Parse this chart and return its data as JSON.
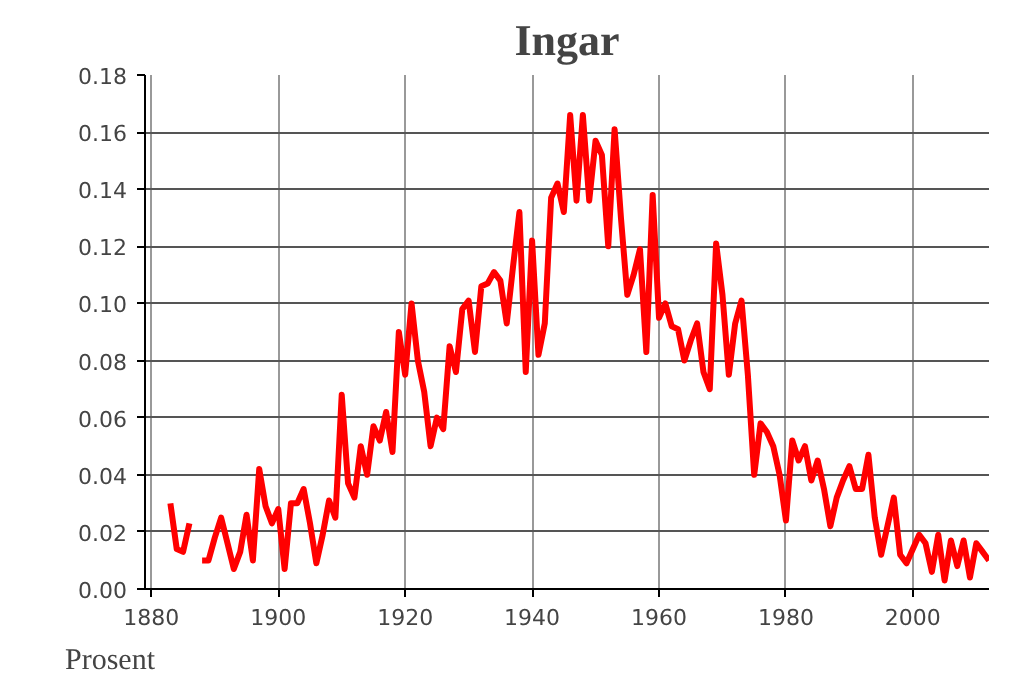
{
  "chart_data": {
    "type": "line",
    "title": "Ingar",
    "annotations": [
      "Prosent"
    ],
    "x": [
      1883,
      1884,
      1885,
      1886,
      1887,
      1888,
      1889,
      1890,
      1891,
      1892,
      1893,
      1894,
      1895,
      1896,
      1897,
      1898,
      1899,
      1900,
      1901,
      1902,
      1903,
      1904,
      1905,
      1906,
      1907,
      1908,
      1909,
      1910,
      1911,
      1912,
      1913,
      1914,
      1915,
      1916,
      1917,
      1918,
      1919,
      1920,
      1921,
      1922,
      1923,
      1924,
      1925,
      1926,
      1927,
      1928,
      1929,
      1930,
      1931,
      1932,
      1933,
      1934,
      1935,
      1936,
      1937,
      1938,
      1939,
      1940,
      1941,
      1942,
      1943,
      1944,
      1945,
      1946,
      1947,
      1948,
      1949,
      1950,
      1951,
      1952,
      1953,
      1954,
      1955,
      1956,
      1957,
      1958,
      1959,
      1960,
      1961,
      1962,
      1963,
      1964,
      1965,
      1966,
      1967,
      1968,
      1969,
      1970,
      1971,
      1972,
      1973,
      1974,
      1975,
      1976,
      1977,
      1978,
      1979,
      1980,
      1981,
      1982,
      1983,
      1984,
      1985,
      1986,
      1987,
      1988,
      1989,
      1990,
      1991,
      1992,
      1993,
      1994,
      1995,
      1996,
      1997,
      1998,
      1999,
      2000,
      2001,
      2002,
      2003,
      2004,
      2005,
      2006,
      2007,
      2008,
      2009,
      2010,
      2011,
      2012
    ],
    "series": [
      {
        "color": "#ff0000",
        "values": [
          0.03,
          0.014,
          0.013,
          0.023,
          null,
          0.01,
          0.01,
          0.018,
          0.025,
          0.016,
          0.007,
          0.013,
          0.026,
          0.01,
          0.042,
          0.029,
          0.023,
          0.028,
          0.007,
          0.03,
          0.03,
          0.035,
          0.023,
          0.009,
          0.019,
          0.031,
          0.025,
          0.068,
          0.037,
          0.032,
          0.05,
          0.04,
          0.057,
          0.052,
          0.062,
          0.048,
          0.09,
          0.075,
          0.1,
          0.08,
          0.069,
          0.05,
          0.06,
          0.056,
          0.085,
          0.076,
          0.098,
          0.101,
          0.083,
          0.106,
          0.107,
          0.111,
          0.108,
          0.093,
          0.113,
          0.132,
          0.076,
          0.122,
          0.082,
          0.093,
          0.137,
          0.142,
          0.132,
          0.166,
          0.136,
          0.166,
          0.136,
          0.157,
          0.152,
          0.12,
          0.161,
          0.13,
          0.103,
          0.11,
          0.119,
          0.083,
          0.138,
          0.095,
          0.1,
          0.092,
          0.091,
          0.08,
          0.087,
          0.093,
          0.076,
          0.07,
          0.121,
          0.103,
          0.075,
          0.093,
          0.101,
          0.075,
          0.04,
          0.058,
          0.055,
          0.05,
          0.04,
          0.024,
          0.052,
          0.045,
          0.05,
          0.038,
          0.045,
          0.035,
          0.022,
          0.032,
          0.038,
          0.043,
          0.035,
          0.035,
          0.047,
          0.025,
          0.012,
          0.022,
          0.032,
          0.012,
          0.009,
          0.014,
          0.019,
          0.016,
          0.006,
          0.019,
          0.003,
          0.017,
          0.008,
          0.017,
          0.004,
          0.016,
          0.013,
          0.01
        ]
      }
    ],
    "xlim": [
      1879,
      2012
    ],
    "ylim": [
      0,
      0.18
    ],
    "xticks": [
      1880,
      1900,
      1920,
      1940,
      1960,
      1980,
      2000
    ],
    "yticks": [
      {
        "value": 0,
        "label": "0.00"
      },
      {
        "value": 0.02,
        "label": "0.02"
      },
      {
        "value": 0.04,
        "label": "0.04"
      },
      {
        "value": 0.06,
        "label": "0.06"
      },
      {
        "value": 0.08,
        "label": "0.08"
      },
      {
        "value": 0.1,
        "label": "0.10"
      },
      {
        "value": 0.12,
        "label": "0.12"
      },
      {
        "value": 0.14,
        "label": "0.14"
      },
      {
        "value": 0.16,
        "label": "0.16"
      },
      {
        "value": 0.18,
        "label": "0.18"
      }
    ],
    "grid": true
  }
}
